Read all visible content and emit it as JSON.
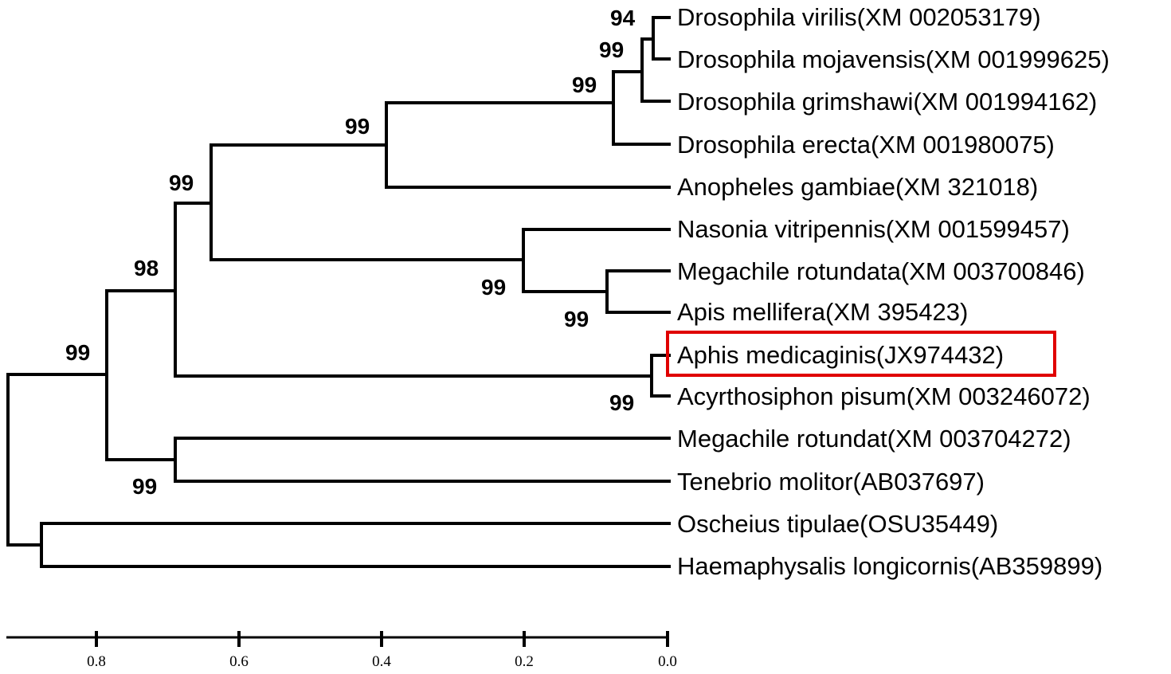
{
  "taxa": [
    "Drosophila virilis(XM 002053179)",
    "Drosophila mojavensis(XM 001999625)",
    "Drosophila grimshawi(XM 001994162)",
    "Drosophila erecta(XM 001980075)",
    "Anopheles gambiae(XM 321018)",
    "Nasonia vitripennis(XM 001599457)",
    "Megachile rotundata(XM 003700846)",
    "Apis mellifera(XM 395423)",
    "Aphis medicaginis(JX974432)",
    "Acyrthosiphon pisum(XM 003246072)",
    "Megachile rotundat(XM 003704272)",
    "Tenebrio molitor(AB037697)",
    "Oscheius tipulae(OSU35449)",
    "Haemaphysalis longicornis(AB359899)"
  ],
  "highlighted_taxon": "Aphis medicaginis(JX974432)",
  "highlight_color": "#e00000",
  "bootstrap": {
    "n_virilis_mojavensis": "94",
    "n_grimshawi": "99",
    "n_drosophila": "99",
    "n_diptera": "99",
    "n_diptera_hymenoptera": "99",
    "n_insecta_main": "98",
    "n_arthropoda": "99",
    "n_hymenoptera": "99",
    "n_megachile_apis": "99",
    "n_aphids": "99",
    "n_megachile_tenebrio": "99"
  },
  "scale_axis": {
    "ticks": [
      "0.8",
      "0.6",
      "0.4",
      "0.2",
      "0.0"
    ],
    "reversed": true
  }
}
